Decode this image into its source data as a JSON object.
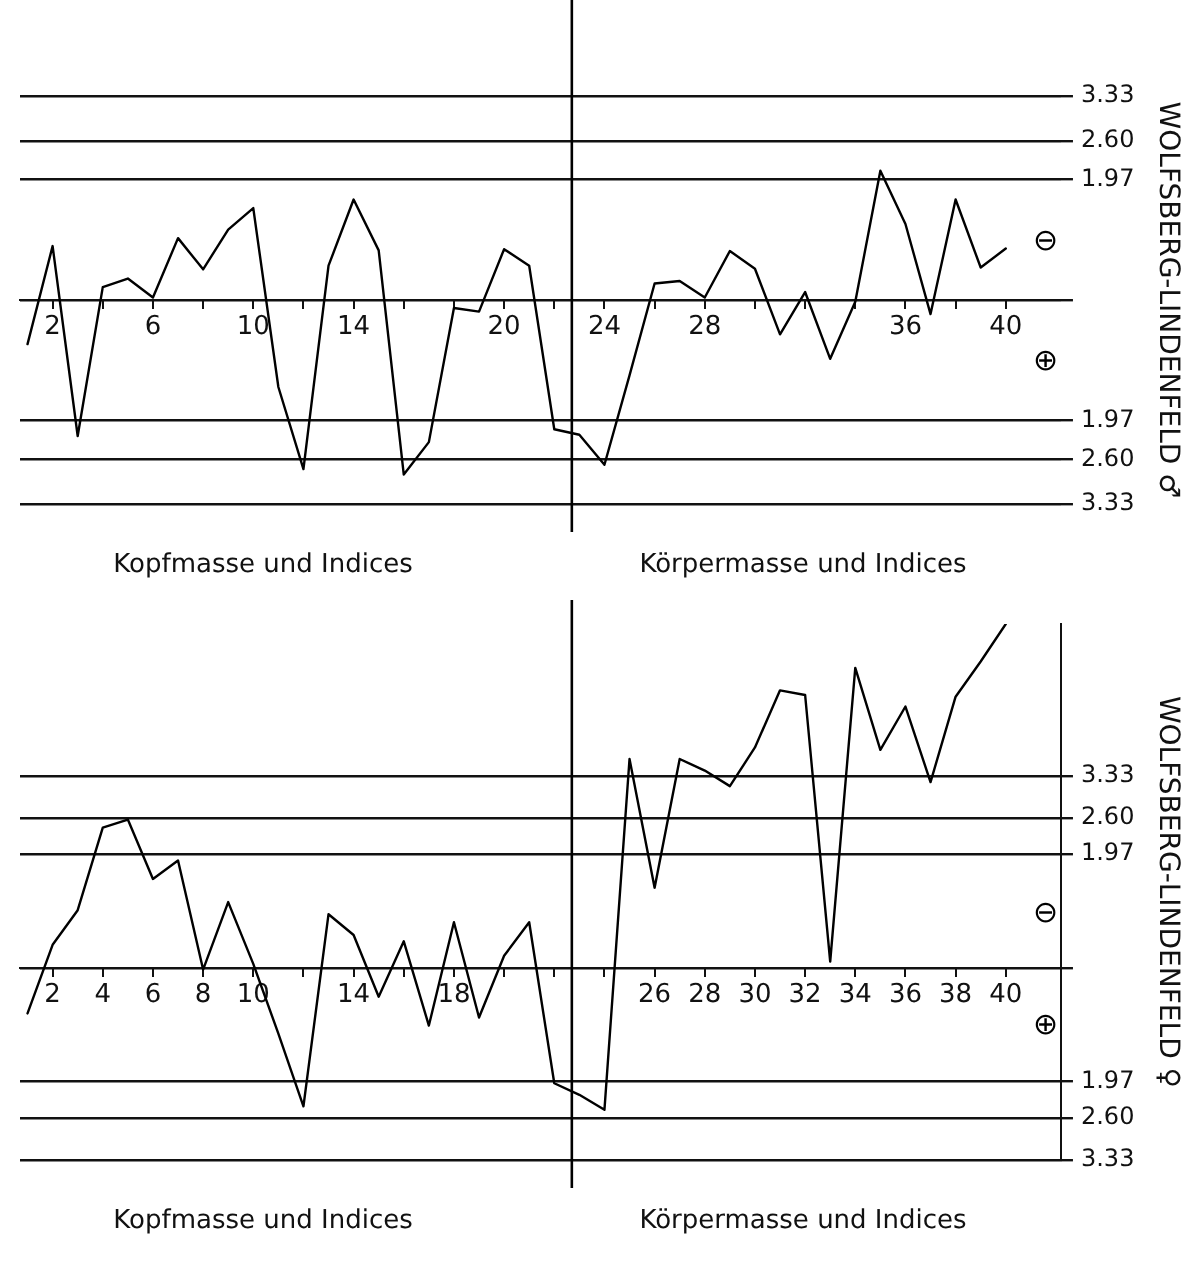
{
  "chart_data": [
    {
      "type": "line",
      "ylabel": "WOLFSBERG-LINDENFELD ♂",
      "color": "#000000",
      "marker": "none",
      "line_style": "solid",
      "grid": "y",
      "legend": false,
      "x": [
        1,
        2,
        3,
        4,
        5,
        6,
        7,
        8,
        9,
        10,
        11,
        12,
        13,
        14,
        15,
        16,
        17,
        18,
        19,
        20,
        21,
        22,
        23,
        24,
        25,
        26,
        27,
        28,
        29,
        30,
        31,
        32,
        33,
        34,
        35,
        36,
        37,
        38,
        39,
        40
      ],
      "values": [
        -0.72,
        0.88,
        -2.22,
        0.21,
        0.35,
        0.04,
        1.01,
        0.5,
        1.15,
        1.5,
        -1.42,
        -2.76,
        0.56,
        1.64,
        0.81,
        -2.85,
        -2.32,
        -0.13,
        -0.19,
        0.83,
        0.56,
        -2.11,
        -2.2,
        -2.69,
        -1.23,
        0.27,
        0.31,
        0.04,
        0.8,
        0.51,
        -0.56,
        0.13,
        -0.96,
        -0.03,
        2.11,
        1.24,
        -0.23,
        1.64,
        0.53,
        0.84
      ],
      "xlim": [
        0.7,
        42.2
      ],
      "xticks": [
        2,
        {
          "value": 4,
          "label": null
        },
        6,
        {
          "value": 8,
          "label": null
        },
        10,
        {
          "value": 12,
          "label": null
        },
        14,
        {
          "value": 16,
          "label": null
        },
        {
          "value": 18,
          "label": null
        },
        20,
        {
          "value": 22,
          "label": null
        },
        24,
        {
          "value": 26,
          "label": null
        },
        28,
        {
          "value": 30,
          "label": null
        },
        {
          "value": 32,
          "label": null
        },
        {
          "value": 34,
          "label": null
        },
        36,
        {
          "value": 38,
          "label": null
        },
        40
      ],
      "ylim": [
        -3.33,
        3.33
      ],
      "yticks": [
        {
          "value": 3.33,
          "label": "3.33"
        },
        {
          "value": 2.6,
          "label": "2.60"
        },
        {
          "value": 1.97,
          "label": "1.97"
        },
        {
          "value": 0,
          "label": null
        },
        {
          "value": -1.97,
          "label": "1.97"
        },
        {
          "value": -2.6,
          "label": "2.60"
        },
        {
          "value": -3.33,
          "label": "3.33"
        }
      ],
      "ref_lines": [
        {
          "axis": "x",
          "value": 22.7,
          "color": "#000000"
        }
      ],
      "annotations": [
        "⊖",
        "⊕",
        "Kopfmasse und Indices",
        "Körpermasse und Indices"
      ]
    },
    {
      "type": "line",
      "ylabel": "WOLFSBERG-LINDENFELD ♀",
      "color": "#000000",
      "marker": "none",
      "line_style": "solid",
      "grid": "y",
      "legend": false,
      "x": [
        1,
        2,
        3,
        4,
        5,
        6,
        7,
        8,
        9,
        10,
        11,
        12,
        13,
        14,
        15,
        16,
        17,
        18,
        19,
        20,
        21,
        22,
        23,
        24,
        25,
        26,
        27,
        28,
        29,
        30,
        31,
        32,
        33,
        34,
        35,
        36,
        37,
        38,
        39,
        40
      ],
      "values": [
        -0.79,
        0.4,
        1.0,
        2.43,
        2.57,
        1.54,
        1.86,
        -0.03,
        1.14,
        0.07,
        -1.14,
        -2.4,
        0.93,
        0.57,
        -0.5,
        0.46,
        -1.0,
        0.79,
        -0.86,
        0.21,
        0.79,
        -2.0,
        -2.2,
        -2.46,
        3.62,
        1.39,
        3.62,
        3.42,
        3.15,
        3.82,
        4.81,
        4.73,
        0.11,
        5.2,
        3.78,
        4.53,
        3.22,
        4.7,
        5.31,
        5.96
      ],
      "xlim": [
        0.7,
        42.2
      ],
      "xticks": [
        2,
        4,
        6,
        8,
        10,
        {
          "value": 12,
          "label": null
        },
        14,
        {
          "value": 16,
          "label": null
        },
        18,
        {
          "value": 20,
          "label": null
        },
        {
          "value": 22,
          "label": null
        },
        {
          "value": 24,
          "label": null
        },
        26,
        28,
        30,
        32,
        34,
        36,
        38,
        40
      ],
      "ylim": [
        -3.33,
        5.96
      ],
      "yticks": [
        {
          "value": 3.33,
          "label": "3.33"
        },
        {
          "value": 2.6,
          "label": "2.60"
        },
        {
          "value": 1.97,
          "label": "1.97"
        },
        {
          "value": 0,
          "label": null
        },
        {
          "value": -1.97,
          "label": "1.97"
        },
        {
          "value": -2.6,
          "label": "2.60"
        },
        {
          "value": -3.33,
          "label": "3.33"
        }
      ],
      "ref_lines": [
        {
          "axis": "x",
          "value": 22.7,
          "color": "#000000"
        }
      ],
      "annotations": [
        "⊖",
        "⊕",
        "Kopfmasse und Indices",
        "Körpermasse und Indices"
      ]
    }
  ]
}
